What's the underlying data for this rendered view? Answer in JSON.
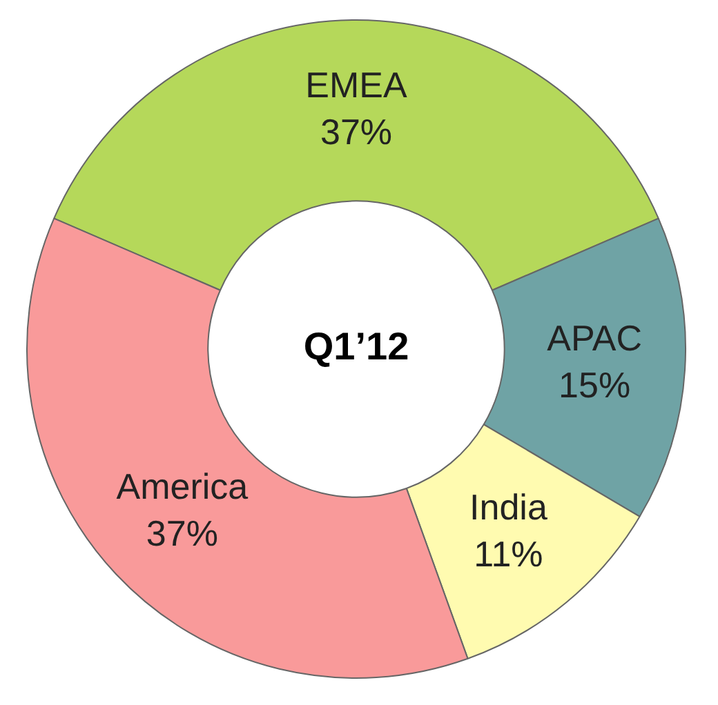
{
  "chart_data": {
    "type": "donut",
    "title": "Q1’12",
    "categories": [
      "EMEA",
      "APAC",
      "India",
      "America"
    ],
    "values": [
      37,
      15,
      11,
      37
    ],
    "value_labels": [
      "37%",
      "15%",
      "11%",
      "37%"
    ],
    "colors": [
      "#b5d85a",
      "#6fa3a5",
      "#fffbb0",
      "#f99a9a"
    ],
    "legend": false
  }
}
